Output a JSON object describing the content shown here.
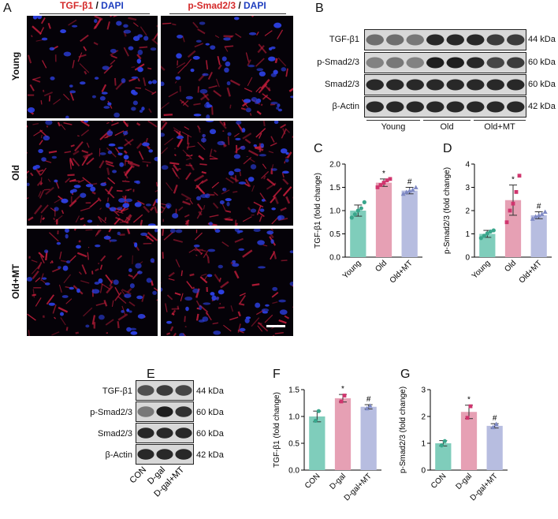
{
  "panels": {
    "A": "A",
    "B": "B",
    "C": "C",
    "D": "D",
    "E": "E",
    "F": "F",
    "G": "G"
  },
  "panelA": {
    "col_headers": [
      {
        "stain": "TGF-β1",
        "sep": " / ",
        "dapi": "DAPI"
      },
      {
        "stain": "p-Smad2/3",
        "sep": " / ",
        "dapi": "DAPI"
      }
    ],
    "row_labels": [
      "Young",
      "Old",
      "Old+MT"
    ]
  },
  "panelB": {
    "proteins": [
      "TGF-β1",
      "p-Smad2/3",
      "Smad2/3",
      "β-Actin"
    ],
    "sizes": [
      "44 kDa",
      "60 kDa",
      "60 kDa",
      "42 kDa"
    ],
    "groups": [
      "Young",
      "Old",
      "Old+MT"
    ]
  },
  "panelE": {
    "proteins": [
      "TGF-β1",
      "p-Smad2/3",
      "Smad2/3",
      "β-Actin"
    ],
    "sizes": [
      "44 kDa",
      "60 kDa",
      "60 kDa",
      "42 kDa"
    ],
    "groups": [
      "CON",
      "D-gal",
      "D-gal+MT"
    ]
  },
  "colors": {
    "teal": "#7fcdbb",
    "pink": "#e6a0b4",
    "lavender": "#b7bde0",
    "teal_dot": "#3aa68c",
    "pink_dot": "#d0356e",
    "lav_dot": "#7f8ac4",
    "tgf_red": "#d42a2a",
    "dapi_blue": "#1f3fbf"
  },
  "chart_data": [
    {
      "panel": "C",
      "type": "bar",
      "categories": [
        "Young",
        "Old",
        "Old+MT"
      ],
      "values": [
        1.0,
        1.6,
        1.43
      ],
      "errors": [
        0.12,
        0.08,
        0.07
      ],
      "points": [
        [
          0.85,
          0.92,
          1.0,
          1.05,
          1.18
        ],
        [
          1.5,
          1.55,
          1.6,
          1.65,
          1.68
        ],
        [
          1.36,
          1.4,
          1.43,
          1.45,
          1.5
        ]
      ],
      "annotations": [
        "",
        "*",
        "#"
      ],
      "ylabel": "TGF-β1 (fold change)",
      "ylim": [
        0,
        2.0
      ],
      "yticks": [
        "0.0",
        "0.5",
        "1.0",
        "1.5",
        "2.0"
      ]
    },
    {
      "panel": "D",
      "type": "bar",
      "categories": [
        "Young",
        "Old",
        "Old+MT"
      ],
      "values": [
        1.0,
        2.45,
        1.8
      ],
      "errors": [
        0.15,
        0.65,
        0.15
      ],
      "points": [
        [
          0.82,
          0.92,
          1.02,
          1.1,
          1.15
        ],
        [
          1.5,
          2.0,
          2.3,
          2.8,
          3.5
        ],
        [
          1.65,
          1.75,
          1.8,
          1.85,
          1.95
        ]
      ],
      "annotations": [
        "",
        "*",
        "#"
      ],
      "ylabel": "p-Smad2/3 (fold change)",
      "ylim": [
        0,
        4
      ],
      "yticks": [
        "0",
        "1",
        "2",
        "3",
        "4"
      ]
    },
    {
      "panel": "F",
      "type": "bar",
      "categories": [
        "CON",
        "D-gal",
        "D-gal+MT"
      ],
      "values": [
        1.0,
        1.34,
        1.18
      ],
      "errors": [
        0.1,
        0.07,
        0.04
      ],
      "points": [
        [
          0.92,
          1.1
        ],
        [
          1.28,
          1.39
        ],
        [
          1.15,
          1.2
        ]
      ],
      "annotations": [
        "",
        "*",
        "#"
      ],
      "ylabel": "TGF-β1 (fold change)",
      "ylim": [
        0,
        1.5
      ],
      "yticks": [
        "0.0",
        "0.5",
        "1.0",
        "1.5"
      ]
    },
    {
      "panel": "G",
      "type": "bar",
      "categories": [
        "CON",
        "D-gal",
        "D-gal+MT"
      ],
      "values": [
        1.0,
        2.17,
        1.65
      ],
      "errors": [
        0.1,
        0.25,
        0.08
      ],
      "points": [
        [
          0.92,
          1.08
        ],
        [
          1.95,
          2.38
        ],
        [
          1.6,
          1.72
        ]
      ],
      "annotations": [
        "",
        "*",
        "#"
      ],
      "ylabel": "p-Smad2/3 (fold change)",
      "ylim": [
        0,
        3
      ],
      "yticks": [
        "0",
        "1",
        "2",
        "3"
      ]
    }
  ]
}
